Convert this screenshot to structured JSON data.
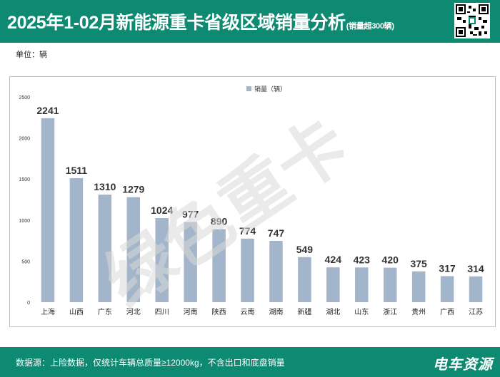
{
  "header": {
    "title": "2025年1-02月新能源重卡省级区域销量分析",
    "subtitle": "(销量超300辆)"
  },
  "unit_label": "单位：辆",
  "footer": {
    "source": "数据源：上险数据，仅统计车辆总质量≥12000kg，不含出口和底盘销量",
    "brand": "电车资源"
  },
  "watermark": "绿色重卡",
  "colors": {
    "header_bg": "#0f8a72",
    "bar": "#a2b5ca",
    "watermark": "#d9d9d9"
  },
  "chart_data": {
    "type": "bar",
    "legend": "销量（辆）",
    "legend_position": "top-center",
    "categories": [
      "上海",
      "山西",
      "广东",
      "河北",
      "四川",
      "河南",
      "陕西",
      "云南",
      "湖南",
      "新疆",
      "湖北",
      "山东",
      "浙江",
      "贵州",
      "广西",
      "江苏"
    ],
    "values": [
      2241,
      1511,
      1310,
      1279,
      1024,
      977,
      890,
      774,
      747,
      549,
      424,
      423,
      420,
      375,
      317,
      314
    ],
    "ylim": [
      0,
      2500
    ],
    "yticks": [
      0,
      500,
      1000,
      1500,
      2000,
      2500
    ],
    "grid": false
  }
}
